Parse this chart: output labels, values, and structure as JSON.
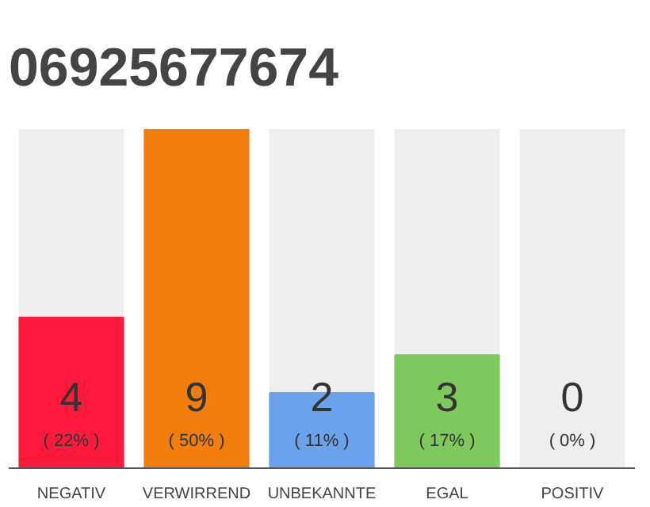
{
  "chart_data": {
    "type": "bar",
    "title": "06925677674",
    "categories": [
      "NEGATIV",
      "VERWIRREND",
      "UNBEKANNTE",
      "EGAL",
      "POSITIV"
    ],
    "values": [
      4,
      9,
      2,
      3,
      0
    ],
    "colors": [
      "#ff1a3c",
      "#f07d0c",
      "#6aa2ec",
      "#7dc95e",
      "#bbbbbb"
    ],
    "value_labels": [
      "4",
      "9",
      "2",
      "3",
      "0"
    ],
    "annotations": [
      "( 22% )",
      "( 50% )",
      "( 11% )",
      "( 17% )",
      "( 0% )"
    ],
    "grid": false
  }
}
